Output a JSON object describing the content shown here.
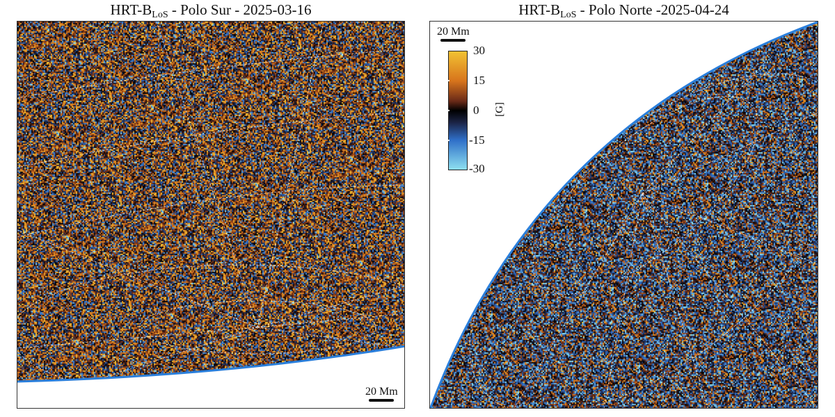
{
  "panels": [
    {
      "title_prefix": "HRT-B",
      "title_sub": "LoS",
      "title_suffix": " - Polo Sur - 2025-03-16",
      "scale_label": "20 Mm"
    },
    {
      "title_prefix": "HRT-B",
      "title_sub": "LoS",
      "title_suffix": " - Polo Norte -2025-04-24",
      "scale_label": "20 Mm"
    }
  ],
  "colorbar": {
    "ticks": [
      "30",
      "15",
      "0",
      "-15",
      "-30"
    ],
    "unit": "[G]"
  },
  "colors": {
    "positive": "#f2b82a",
    "negative": "#5ac8ee",
    "limb": "#2a7fdc"
  }
}
